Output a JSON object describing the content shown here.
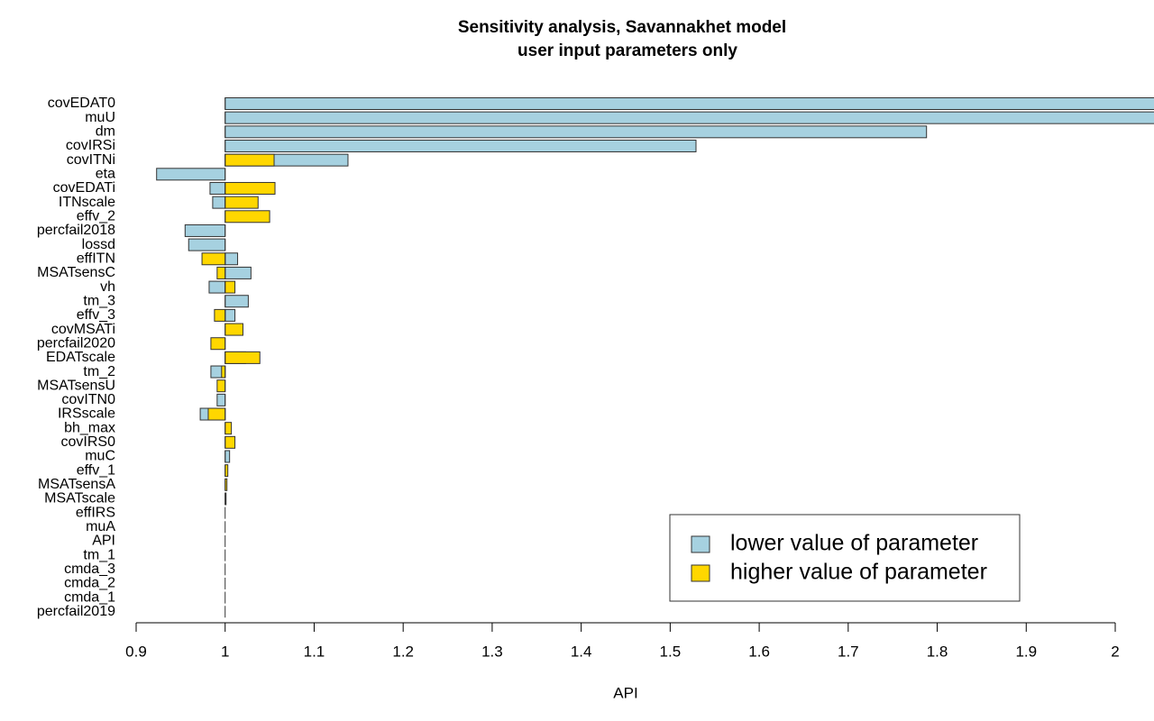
{
  "chart_data": {
    "type": "tornado",
    "title": "Sensitivity analysis, Savannakhet model",
    "subtitle": "user input parameters only",
    "x_label": "API",
    "baseline": 1,
    "categories": [
      "covEDAT0",
      "muU",
      "dm",
      "covIRSi",
      "covITNi",
      "eta",
      "covEDATi",
      "ITNscale",
      "effv_2",
      "percfail2018",
      "lossd",
      "effITN",
      "MSATsensC",
      "vh",
      "tm_3",
      "effv_3",
      "covMSATi",
      "percfail2020",
      "EDATscale",
      "tm_2",
      "MSATsensU",
      "covITN0",
      "IRSscale",
      "bh_max",
      "covIRS0",
      "muC",
      "effv_1",
      "MSATsensA",
      "MSATscale",
      "effIRS",
      "muA",
      "API",
      "tm_1",
      "cmda_3",
      "cmda_2",
      "cmda_1",
      "percfail2019"
    ],
    "series": [
      {
        "name": "lower value of parameter",
        "color": "#a6d1e0",
        "values": [
          2.05,
          2.05,
          1.788,
          1.529,
          1.138,
          0.923,
          0.983,
          0.986,
          1,
          0.955,
          0.959,
          1.014,
          1.029,
          0.982,
          1.026,
          1.011,
          1,
          1,
          1.023,
          0.984,
          1,
          0.991,
          0.972,
          1,
          1,
          1.005,
          1,
          1,
          1,
          1,
          1,
          1,
          1,
          1,
          1,
          1,
          1
        ]
      },
      {
        "name": "higher value of parameter",
        "color": "#ffd700",
        "values": [
          1,
          1,
          1,
          1,
          1.055,
          1,
          1.056,
          1.037,
          1.05,
          1,
          1,
          0.974,
          0.991,
          1.011,
          1,
          0.988,
          1.02,
          0.984,
          1.039,
          0.996,
          0.991,
          1,
          0.981,
          1.007,
          1.011,
          1,
          1.003,
          1.002,
          1.001,
          1,
          1,
          1,
          1,
          1,
          1,
          1,
          1
        ]
      }
    ],
    "xlim": [
      0.9,
      2
    ],
    "xticks": [
      0.9,
      1,
      1.1,
      1.2,
      1.3,
      1.4,
      1.5,
      1.6,
      1.7,
      1.8,
      1.9,
      2
    ],
    "legend": "bottom-right"
  }
}
